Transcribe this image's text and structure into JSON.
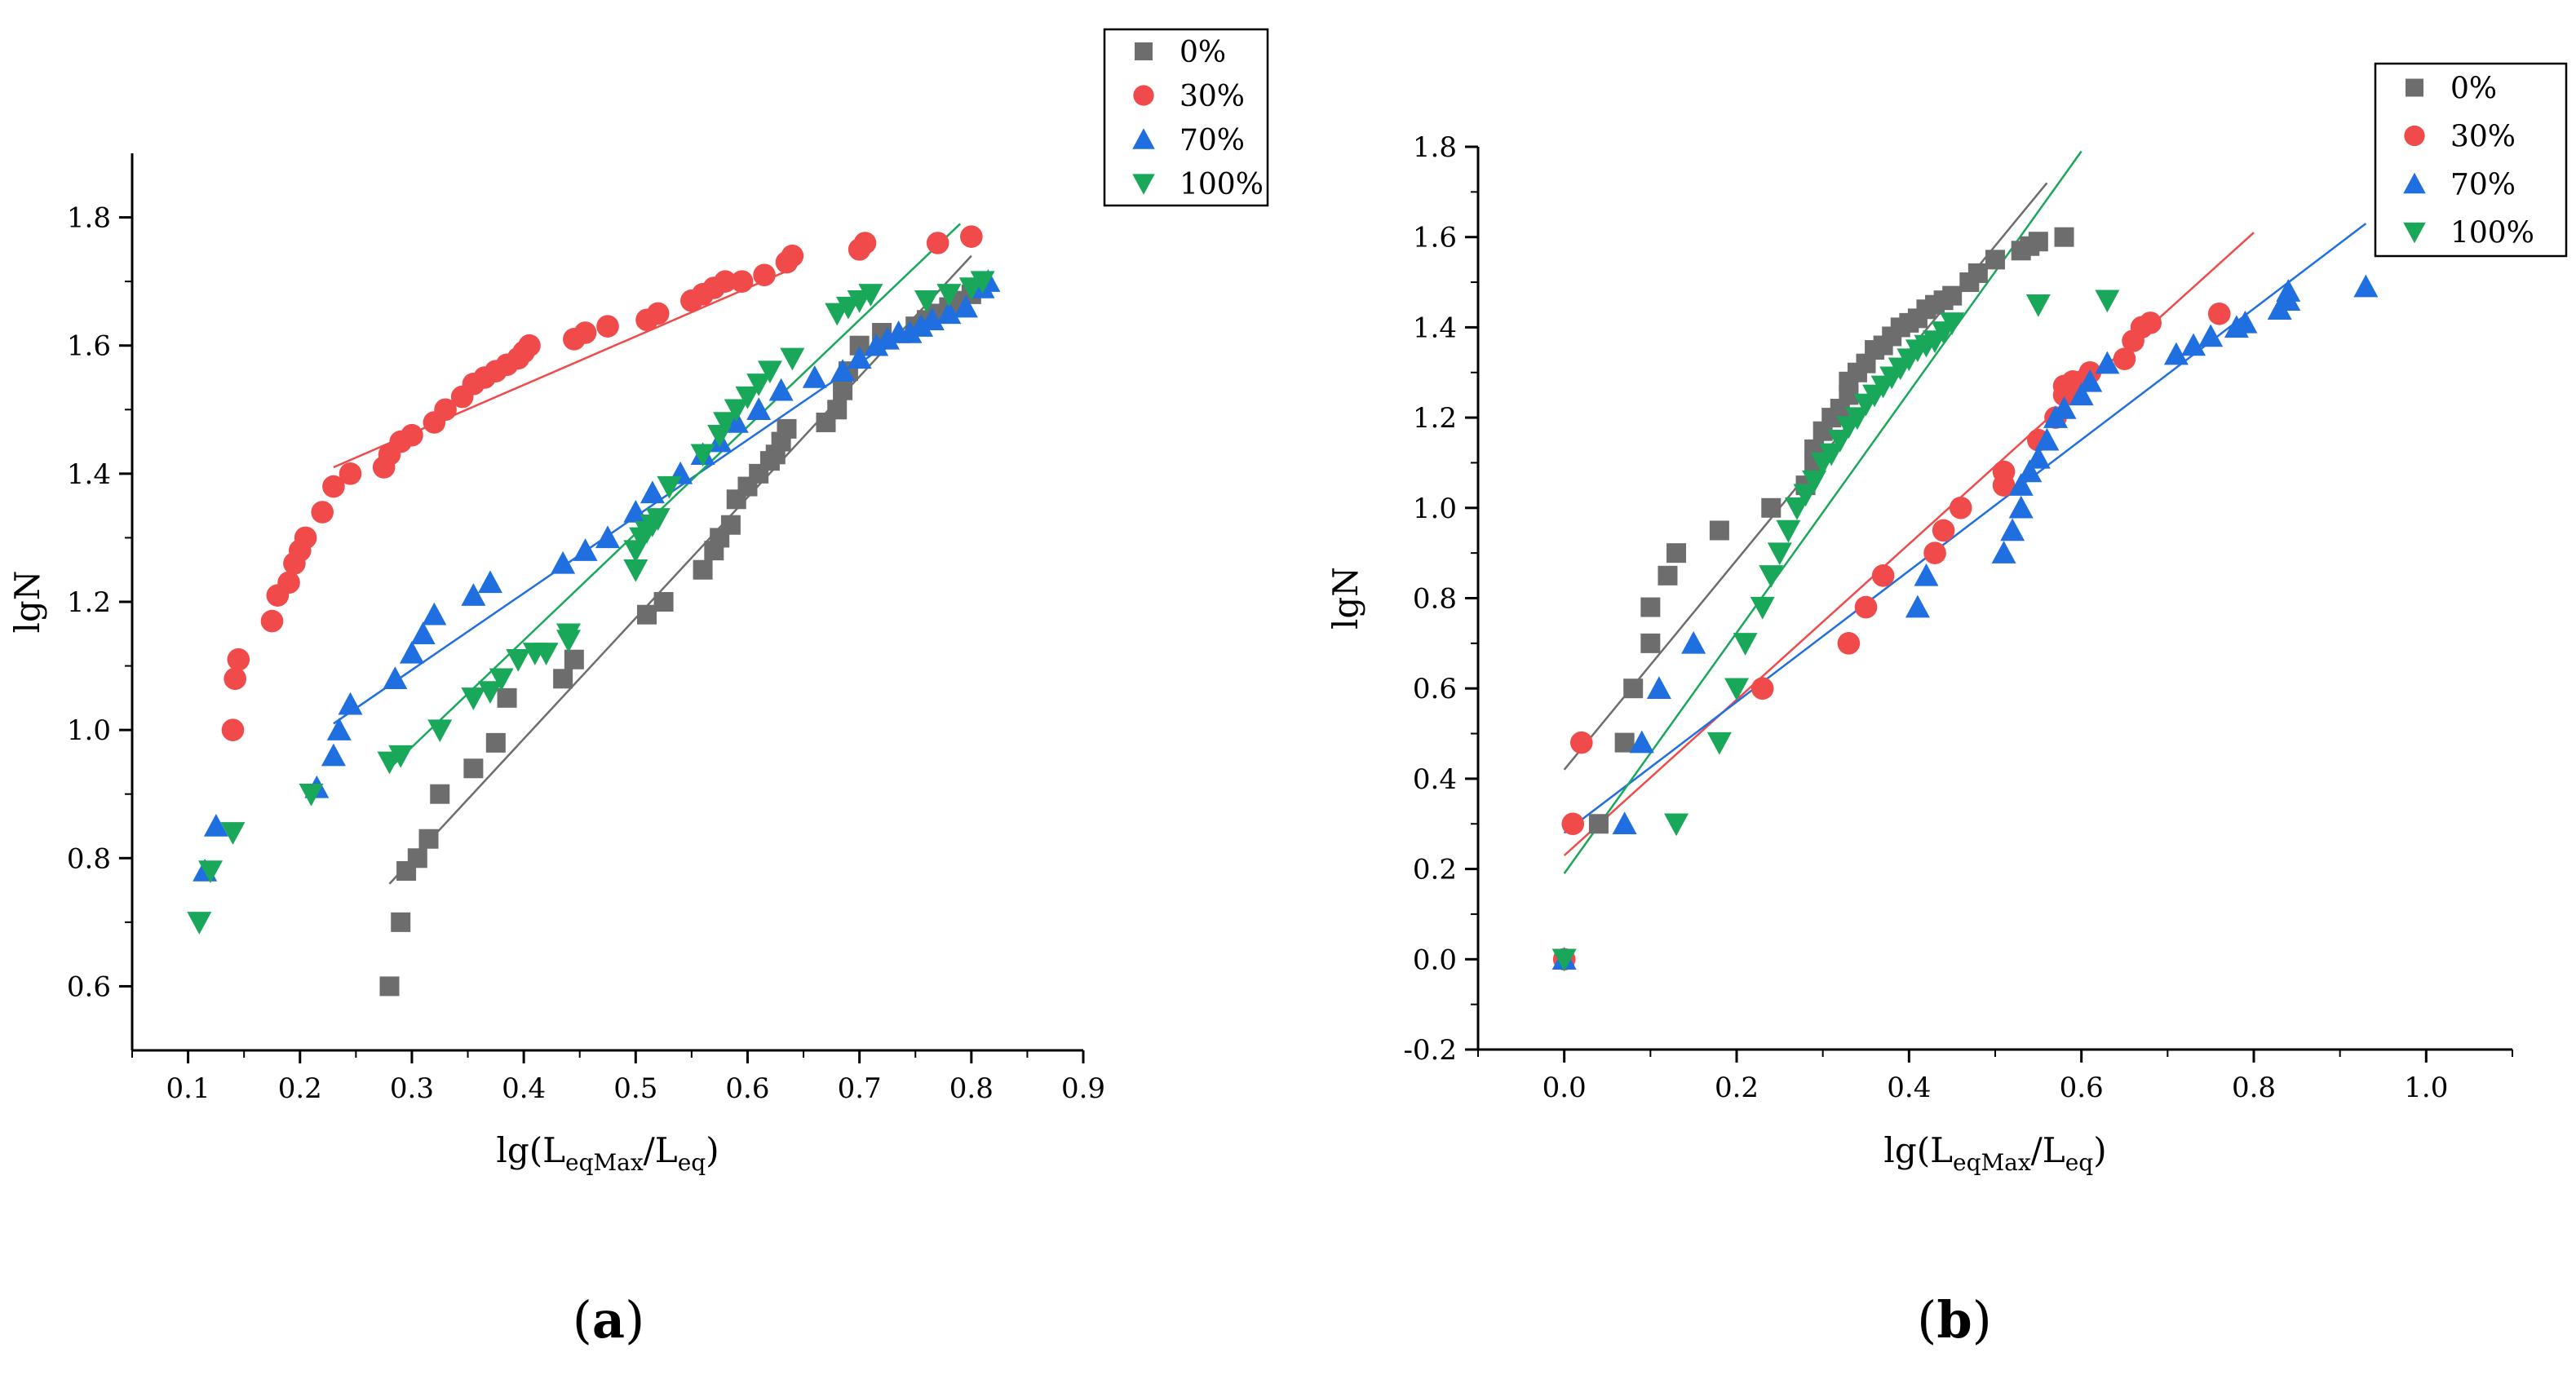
{
  "chart_data": [
    {
      "type": "scatter",
      "panel_label": "a",
      "xlabel": {
        "base": "lg(L",
        "sub1": "eqMax",
        "mid": "/L",
        "sub2": "eq",
        "end": ")"
      },
      "ylabel": "lgN",
      "xlim": [
        0.05,
        0.9
      ],
      "ylim": [
        0.5,
        1.9
      ],
      "xticks": [
        0.1,
        0.2,
        0.3,
        0.4,
        0.5,
        0.6,
        0.7,
        0.8,
        0.9
      ],
      "xtick_labels": [
        "0.1",
        "0.2",
        "0.3",
        "0.4",
        "0.5",
        "0.6",
        "0.7",
        "0.8",
        "0.9"
      ],
      "yticks": [
        0.6,
        0.8,
        1.0,
        1.2,
        1.4,
        1.6,
        1.8
      ],
      "ytick_labels": [
        "0.6",
        "0.8",
        "1.0",
        "1.2",
        "1.4",
        "1.6",
        "1.8"
      ],
      "legend_position": "top-right",
      "series": [
        {
          "name": "0%",
          "marker": "square",
          "color": "#6d6d6d",
          "x": [
            0.28,
            0.29,
            0.295,
            0.305,
            0.315,
            0.325,
            0.355,
            0.375,
            0.385,
            0.435,
            0.445,
            0.51,
            0.525,
            0.56,
            0.57,
            0.575,
            0.585,
            0.59,
            0.6,
            0.61,
            0.62,
            0.625,
            0.63,
            0.635,
            0.67,
            0.68,
            0.685,
            0.69,
            0.7,
            0.72,
            0.75,
            0.76,
            0.77,
            0.78,
            0.79,
            0.8
          ],
          "y": [
            0.6,
            0.7,
            0.78,
            0.8,
            0.83,
            0.9,
            0.94,
            0.98,
            1.05,
            1.08,
            1.11,
            1.18,
            1.2,
            1.25,
            1.28,
            1.3,
            1.32,
            1.36,
            1.38,
            1.4,
            1.42,
            1.43,
            1.45,
            1.47,
            1.48,
            1.5,
            1.53,
            1.56,
            1.6,
            1.62,
            1.63,
            1.64,
            1.65,
            1.66,
            1.67,
            1.68
          ],
          "fit": [
            [
              0.28,
              0.76
            ],
            [
              0.8,
              1.74
            ]
          ]
        },
        {
          "name": "30%",
          "marker": "circle",
          "color": "#f04a4a",
          "x": [
            0.14,
            0.142,
            0.145,
            0.175,
            0.18,
            0.19,
            0.195,
            0.2,
            0.205,
            0.22,
            0.23,
            0.245,
            0.275,
            0.28,
            0.29,
            0.3,
            0.32,
            0.33,
            0.345,
            0.355,
            0.365,
            0.375,
            0.385,
            0.395,
            0.4,
            0.405,
            0.445,
            0.455,
            0.475,
            0.51,
            0.52,
            0.55,
            0.56,
            0.57,
            0.58,
            0.595,
            0.615,
            0.635,
            0.64,
            0.7,
            0.705,
            0.77,
            0.8
          ],
          "y": [
            1.0,
            1.08,
            1.11,
            1.17,
            1.21,
            1.23,
            1.26,
            1.28,
            1.3,
            1.34,
            1.38,
            1.4,
            1.41,
            1.43,
            1.45,
            1.46,
            1.48,
            1.5,
            1.52,
            1.54,
            1.55,
            1.56,
            1.57,
            1.58,
            1.59,
            1.6,
            1.61,
            1.62,
            1.63,
            1.64,
            1.65,
            1.67,
            1.68,
            1.69,
            1.7,
            1.7,
            1.71,
            1.73,
            1.74,
            1.75,
            1.76,
            1.76,
            1.77
          ],
          "fit": [
            [
              0.23,
              1.41
            ],
            [
              0.64,
              1.72
            ]
          ]
        },
        {
          "name": "70%",
          "marker": "triangle-up",
          "color": "#1f6fe0",
          "x": [
            0.115,
            0.125,
            0.215,
            0.23,
            0.235,
            0.245,
            0.285,
            0.3,
            0.31,
            0.32,
            0.355,
            0.37,
            0.435,
            0.455,
            0.475,
            0.5,
            0.515,
            0.54,
            0.56,
            0.575,
            0.59,
            0.61,
            0.63,
            0.66,
            0.685,
            0.7,
            0.715,
            0.725,
            0.735,
            0.745,
            0.755,
            0.765,
            0.78,
            0.795,
            0.81,
            0.815
          ],
          "y": [
            0.78,
            0.85,
            0.91,
            0.96,
            1.0,
            1.04,
            1.08,
            1.12,
            1.15,
            1.18,
            1.21,
            1.23,
            1.26,
            1.28,
            1.3,
            1.34,
            1.37,
            1.4,
            1.43,
            1.45,
            1.48,
            1.5,
            1.53,
            1.55,
            1.56,
            1.58,
            1.6,
            1.61,
            1.62,
            1.62,
            1.63,
            1.64,
            1.65,
            1.66,
            1.69,
            1.7
          ],
          "fit": [
            [
              0.23,
              1.01
            ],
            [
              0.815,
              1.71
            ]
          ]
        },
        {
          "name": "100%",
          "marker": "triangle-down",
          "color": "#19a85a",
          "x": [
            0.11,
            0.12,
            0.14,
            0.21,
            0.28,
            0.29,
            0.325,
            0.355,
            0.37,
            0.38,
            0.395,
            0.41,
            0.42,
            0.44,
            0.44,
            0.5,
            0.5,
            0.505,
            0.51,
            0.515,
            0.52,
            0.53,
            0.56,
            0.575,
            0.58,
            0.59,
            0.6,
            0.61,
            0.62,
            0.64,
            0.68,
            0.69,
            0.7,
            0.71,
            0.76,
            0.78,
            0.8,
            0.81
          ],
          "y": [
            0.7,
            0.78,
            0.84,
            0.9,
            0.95,
            0.96,
            1.0,
            1.05,
            1.06,
            1.08,
            1.11,
            1.12,
            1.12,
            1.14,
            1.15,
            1.25,
            1.28,
            1.3,
            1.31,
            1.32,
            1.33,
            1.38,
            1.43,
            1.46,
            1.48,
            1.5,
            1.52,
            1.54,
            1.56,
            1.58,
            1.65,
            1.66,
            1.67,
            1.68,
            1.67,
            1.68,
            1.69,
            1.7
          ],
          "fit": [
            [
              0.28,
              0.94
            ],
            [
              0.79,
              1.79
            ]
          ]
        }
      ]
    },
    {
      "type": "scatter",
      "panel_label": "b",
      "xlabel": {
        "base": "lg(L",
        "sub1": "eqMax",
        "mid": "/L",
        "sub2": "eq",
        "end": ")"
      },
      "ylabel": "lgN",
      "xlim": [
        -0.1,
        1.1
      ],
      "ylim": [
        -0.2,
        1.8
      ],
      "xticks": [
        0.0,
        0.2,
        0.4,
        0.6,
        0.8,
        1.0
      ],
      "xtick_labels": [
        "0.0",
        "0.2",
        "0.4",
        "0.6",
        "0.8",
        "1.0"
      ],
      "yticks": [
        -0.2,
        0.0,
        0.2,
        0.4,
        0.6,
        0.8,
        1.0,
        1.2,
        1.4,
        1.6,
        1.8
      ],
      "ytick_labels": [
        "-0.2",
        "0.0",
        "0.2",
        "0.4",
        "0.6",
        "0.8",
        "1.0",
        "1.2",
        "1.4",
        "1.6",
        "1.8"
      ],
      "legend_position": "top-right",
      "series": [
        {
          "name": "0%",
          "marker": "square",
          "color": "#6d6d6d",
          "x": [
            0.0,
            0.04,
            0.07,
            0.08,
            0.1,
            0.1,
            0.12,
            0.13,
            0.18,
            0.24,
            0.28,
            0.29,
            0.29,
            0.3,
            0.31,
            0.32,
            0.33,
            0.33,
            0.34,
            0.35,
            0.36,
            0.37,
            0.38,
            0.39,
            0.4,
            0.41,
            0.42,
            0.43,
            0.44,
            0.45,
            0.47,
            0.48,
            0.5,
            0.53,
            0.54,
            0.55,
            0.58
          ],
          "y": [
            0.0,
            0.3,
            0.48,
            0.6,
            0.7,
            0.78,
            0.85,
            0.9,
            0.95,
            1.0,
            1.05,
            1.1,
            1.13,
            1.17,
            1.2,
            1.22,
            1.25,
            1.28,
            1.3,
            1.32,
            1.35,
            1.36,
            1.38,
            1.4,
            1.41,
            1.42,
            1.44,
            1.45,
            1.46,
            1.47,
            1.5,
            1.52,
            1.55,
            1.57,
            1.58,
            1.59,
            1.6
          ],
          "fit": [
            [
              0.0,
              0.42
            ],
            [
              0.56,
              1.72
            ]
          ]
        },
        {
          "name": "30%",
          "marker": "circle",
          "color": "#f04a4a",
          "x": [
            0.0,
            0.01,
            0.02,
            0.23,
            0.33,
            0.35,
            0.37,
            0.43,
            0.44,
            0.46,
            0.51,
            0.51,
            0.55,
            0.57,
            0.58,
            0.58,
            0.59,
            0.6,
            0.61,
            0.65,
            0.66,
            0.67,
            0.68,
            0.76
          ],
          "y": [
            0.0,
            0.3,
            0.48,
            0.6,
            0.7,
            0.78,
            0.85,
            0.9,
            0.95,
            1.0,
            1.05,
            1.08,
            1.15,
            1.2,
            1.25,
            1.27,
            1.28,
            1.28,
            1.3,
            1.33,
            1.37,
            1.4,
            1.41,
            1.43
          ],
          "fit": [
            [
              0.0,
              0.23
            ],
            [
              0.8,
              1.61
            ]
          ]
        },
        {
          "name": "70%",
          "marker": "triangle-up",
          "color": "#1f6fe0",
          "x": [
            0.0,
            0.07,
            0.09,
            0.11,
            0.15,
            0.41,
            0.42,
            0.51,
            0.52,
            0.53,
            0.53,
            0.54,
            0.55,
            0.56,
            0.57,
            0.58,
            0.6,
            0.61,
            0.63,
            0.71,
            0.73,
            0.75,
            0.78,
            0.79,
            0.83,
            0.84,
            0.84,
            0.93
          ],
          "y": [
            0.0,
            0.3,
            0.48,
            0.6,
            0.7,
            0.78,
            0.85,
            0.9,
            0.95,
            1.0,
            1.05,
            1.08,
            1.11,
            1.15,
            1.2,
            1.22,
            1.25,
            1.28,
            1.32,
            1.34,
            1.36,
            1.38,
            1.4,
            1.41,
            1.44,
            1.46,
            1.48,
            1.49
          ],
          "fit": [
            [
              0.0,
              0.28
            ],
            [
              0.93,
              1.63
            ]
          ]
        },
        {
          "name": "100%",
          "marker": "triangle-down",
          "color": "#19a85a",
          "x": [
            0.0,
            0.13,
            0.18,
            0.2,
            0.21,
            0.23,
            0.24,
            0.25,
            0.26,
            0.27,
            0.28,
            0.29,
            0.3,
            0.31,
            0.32,
            0.33,
            0.34,
            0.35,
            0.36,
            0.37,
            0.38,
            0.39,
            0.4,
            0.41,
            0.42,
            0.43,
            0.44,
            0.45,
            0.55,
            0.63
          ],
          "y": [
            0.0,
            0.3,
            0.48,
            0.6,
            0.7,
            0.78,
            0.85,
            0.9,
            0.95,
            1.0,
            1.03,
            1.06,
            1.1,
            1.12,
            1.15,
            1.18,
            1.2,
            1.23,
            1.25,
            1.27,
            1.29,
            1.31,
            1.33,
            1.35,
            1.36,
            1.37,
            1.39,
            1.41,
            1.45,
            1.46
          ],
          "fit": [
            [
              0.0,
              0.19
            ],
            [
              0.6,
              1.79
            ]
          ]
        }
      ]
    }
  ]
}
